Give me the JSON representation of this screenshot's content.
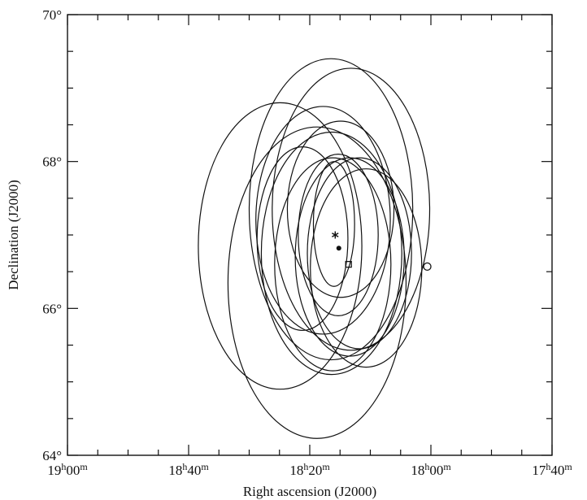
{
  "chart_data": {
    "type": "scatter",
    "title": "",
    "xlabel": "Right ascension (J2000)",
    "ylabel": "Declination (J2000)",
    "x_unit": "minutes of RA",
    "xlim": [
      1140,
      1060
    ],
    "ylim": [
      64,
      70
    ],
    "x_ticks": [
      {
        "value": 1140,
        "hours": "19",
        "minutes": "00"
      },
      {
        "value": 1120,
        "hours": "18",
        "minutes": "40"
      },
      {
        "value": 1100,
        "hours": "18",
        "minutes": "20"
      },
      {
        "value": 1080,
        "hours": "18",
        "minutes": "00"
      },
      {
        "value": 1060,
        "hours": "17",
        "minutes": "40"
      }
    ],
    "y_ticks": [
      {
        "value": 64,
        "label": "64°"
      },
      {
        "value": 66,
        "label": "66°"
      },
      {
        "value": 68,
        "label": "68°"
      },
      {
        "value": 70,
        "label": "70°"
      }
    ],
    "grid": false,
    "error_ellipses": [
      {
        "cx": 1096.5,
        "cy": 67.35,
        "rx": 13.5,
        "ry": 2.05
      },
      {
        "cx": 1093.2,
        "cy": 67.35,
        "rx": 13.0,
        "ry": 1.92
      },
      {
        "cx": 1104.9,
        "cy": 66.85,
        "rx": 13.5,
        "ry": 1.95
      },
      {
        "cx": 1098.8,
        "cy": 66.35,
        "rx": 14.7,
        "ry": 2.12
      },
      {
        "cx": 1096.2,
        "cy": 66.6,
        "rx": 9.6,
        "ry": 1.45
      },
      {
        "cx": 1093.4,
        "cy": 66.7,
        "rx": 9.0,
        "ry": 1.35
      },
      {
        "cx": 1091.8,
        "cy": 66.75,
        "rx": 8.6,
        "ry": 1.3
      },
      {
        "cx": 1090.7,
        "cy": 66.55,
        "rx": 9.2,
        "ry": 1.35
      },
      {
        "cx": 1095.3,
        "cy": 67.0,
        "rx": 6.6,
        "ry": 1.1
      },
      {
        "cx": 1096.0,
        "cy": 67.15,
        "rx": 3.4,
        "ry": 0.85
      },
      {
        "cx": 1094.9,
        "cy": 67.35,
        "rx": 8.8,
        "ry": 1.2
      },
      {
        "cx": 1101.2,
        "cy": 66.95,
        "rx": 7.5,
        "ry": 1.25
      },
      {
        "cx": 1096.4,
        "cy": 66.75,
        "rx": 11.6,
        "ry": 1.65
      },
      {
        "cx": 1097.8,
        "cy": 67.2,
        "rx": 11.1,
        "ry": 1.55
      }
    ],
    "markers": [
      {
        "symbol": "asterisk",
        "x": 1095.8,
        "y": 67.0
      },
      {
        "symbol": "filled-circle",
        "x": 1095.2,
        "y": 66.82
      },
      {
        "symbol": "square",
        "x": 1093.6,
        "y": 66.6
      },
      {
        "symbol": "open-circle",
        "x": 1080.6,
        "y": 66.57
      }
    ]
  }
}
